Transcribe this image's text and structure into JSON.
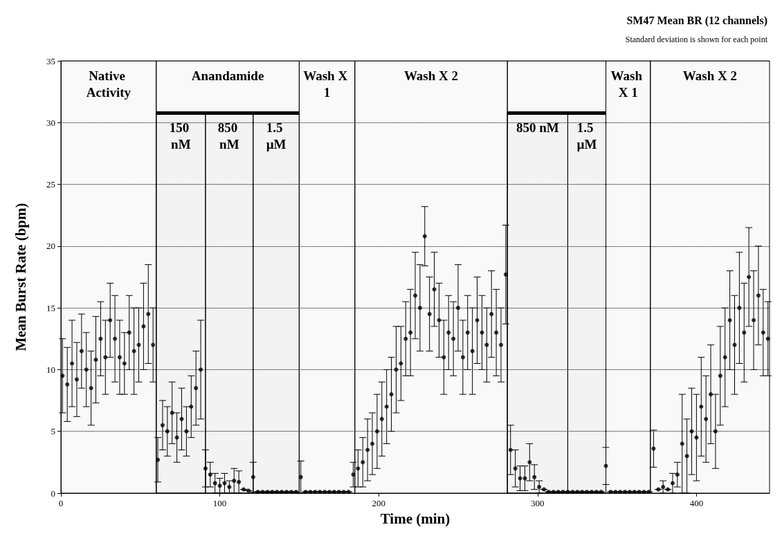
{
  "chart_data": {
    "type": "scatter",
    "title": "SM47 Mean BR (12 channels)",
    "subtitle": "Standard deviation is shown for each point",
    "xlabel": "Time (min)",
    "ylabel": "Mean Burst Rate (bpm)",
    "xlim": [
      0,
      446
    ],
    "xticks": [
      0,
      100,
      200,
      300,
      400
    ],
    "ylim": [
      0,
      35
    ],
    "yticks": [
      0,
      5,
      10,
      15,
      20,
      25,
      30,
      35
    ],
    "grid": "y",
    "marker": "circle",
    "series": [
      {
        "color": "#000000",
        "x": [
          1,
          4,
          7,
          10,
          13,
          16,
          19,
          22,
          25,
          28,
          31,
          34,
          37,
          40,
          43,
          46,
          49,
          52,
          55,
          58,
          61,
          64,
          67,
          70,
          73,
          76,
          79,
          82,
          85,
          88,
          91,
          94,
          97,
          100,
          103,
          106,
          109,
          112,
          115,
          118,
          121,
          124,
          127,
          130,
          133,
          136,
          139,
          142,
          145,
          148,
          151,
          154,
          157,
          160,
          163,
          166,
          169,
          172,
          175,
          178,
          181,
          184,
          187,
          190,
          193,
          196,
          199,
          202,
          205,
          208,
          211,
          214,
          217,
          220,
          223,
          226,
          229,
          232,
          235,
          238,
          241,
          244,
          247,
          250,
          253,
          256,
          259,
          262,
          265,
          268,
          271,
          274,
          277,
          280,
          283,
          286,
          289,
          292,
          295,
          298,
          301,
          304,
          307,
          310,
          313,
          316,
          319,
          322,
          325,
          328,
          331,
          334,
          337,
          340,
          343,
          346,
          349,
          352,
          355,
          358,
          361,
          364,
          367,
          370,
          373,
          376,
          379,
          382,
          385,
          388,
          391,
          394,
          397,
          400,
          403,
          406,
          409,
          412,
          415,
          418,
          421,
          424,
          427,
          430,
          433,
          436,
          439,
          442,
          445
        ],
        "values": [
          9.5,
          8.8,
          10.5,
          9.2,
          11.5,
          10,
          8.5,
          10.8,
          12.5,
          11,
          14,
          12.5,
          11,
          10.5,
          13,
          11.5,
          12,
          13.5,
          14.5,
          12,
          2.7,
          5.5,
          5,
          6.5,
          4.5,
          6,
          5,
          7,
          8.5,
          10,
          2,
          1.5,
          0.8,
          0.6,
          0.8,
          0.5,
          1,
          0.9,
          0.3,
          0.2,
          1.3,
          0.1,
          0.1,
          0.1,
          0.1,
          0.1,
          0.1,
          0.1,
          0.1,
          0.1,
          1.3,
          0.1,
          0.1,
          0.1,
          0.1,
          0.1,
          0.1,
          0.1,
          0.1,
          0.1,
          0.1,
          1.5,
          2,
          2.5,
          3.5,
          4,
          5,
          6,
          7,
          8,
          10,
          10.5,
          12.5,
          13,
          16,
          15,
          20.8,
          14.5,
          16.5,
          14,
          11,
          13,
          12.5,
          15,
          11,
          13,
          11.5,
          14,
          13,
          12,
          14.5,
          13,
          12,
          17.7,
          3.5,
          2,
          1.2,
          1.2,
          2.5,
          1.3,
          0.5,
          0.3,
          0.1,
          0.1,
          0.1,
          0.1,
          0.1,
          0.1,
          0.1,
          0.1,
          0.1,
          0.1,
          0.1,
          0.1,
          2.2,
          0.1,
          0.1,
          0.1,
          0.1,
          0.1,
          0.1,
          0.1,
          0.1,
          0.1,
          3.6,
          0.3,
          0.5,
          0.3,
          0.8,
          1.5,
          4,
          3,
          5,
          4.5,
          7,
          6,
          8,
          5,
          9.5,
          11,
          14,
          12,
          15,
          13,
          17.5,
          14,
          16,
          13,
          12.5
        ],
        "errors": [
          3,
          3,
          3.5,
          3,
          3,
          3,
          3,
          3.5,
          3,
          3,
          3,
          3.5,
          3,
          2.5,
          3,
          3.5,
          3,
          3.5,
          4,
          3,
          1.8,
          2,
          2,
          2.5,
          2,
          2.5,
          2,
          2.5,
          3,
          4,
          1.5,
          1,
          0.8,
          0.6,
          0.8,
          0.5,
          1,
          0.9,
          null,
          null,
          1.2,
          null,
          null,
          null,
          null,
          null,
          null,
          null,
          null,
          null,
          1.3,
          null,
          null,
          null,
          null,
          null,
          null,
          null,
          null,
          null,
          null,
          1,
          1.5,
          2,
          2.5,
          2.5,
          3,
          3,
          3,
          3,
          3.5,
          3,
          3,
          3.5,
          3.5,
          3.5,
          2.4,
          3,
          3,
          3,
          3,
          3,
          3,
          3.5,
          3,
          3,
          3.5,
          3.5,
          3,
          3,
          3.5,
          3.5,
          3,
          4,
          2,
          1.5,
          1,
          1,
          1.5,
          1,
          0.5,
          null,
          null,
          null,
          null,
          null,
          null,
          null,
          null,
          null,
          null,
          null,
          null,
          null,
          1.5,
          null,
          null,
          null,
          null,
          null,
          null,
          null,
          null,
          null,
          1.5,
          null,
          0.5,
          null,
          0.8,
          1,
          4,
          3,
          3.5,
          3.5,
          4,
          3.5,
          4,
          3,
          4,
          4,
          4,
          4,
          4.5,
          4,
          4,
          4,
          4,
          3.5,
          3
        ]
      }
    ],
    "bands": [
      {
        "axis": "x",
        "from": 0,
        "to": 60,
        "label": "Native Activity"
      },
      {
        "axis": "x",
        "from": 60,
        "to": 150,
        "label": "Anandamide"
      },
      {
        "axis": "x",
        "from": 60,
        "to": 91,
        "label": "150 nM"
      },
      {
        "axis": "x",
        "from": 91,
        "to": 121,
        "label": "850 nM"
      },
      {
        "axis": "x",
        "from": 121,
        "to": 150,
        "label": "1.5 µM"
      },
      {
        "axis": "x",
        "from": 150,
        "to": 185,
        "label": "Wash X 1"
      },
      {
        "axis": "x",
        "from": 185,
        "to": 281,
        "label": "Wash X 2"
      },
      {
        "axis": "x",
        "from": 281,
        "to": 343
      },
      {
        "axis": "x",
        "from": 281,
        "to": 319,
        "label": "850 nM"
      },
      {
        "axis": "x",
        "from": 319,
        "to": 343,
        "label": "1.5 µM"
      },
      {
        "axis": "x",
        "from": 343,
        "to": 371,
        "label": "Wash X 1"
      },
      {
        "axis": "x",
        "from": 371,
        "to": 446,
        "label": "Wash X 2"
      }
    ]
  }
}
